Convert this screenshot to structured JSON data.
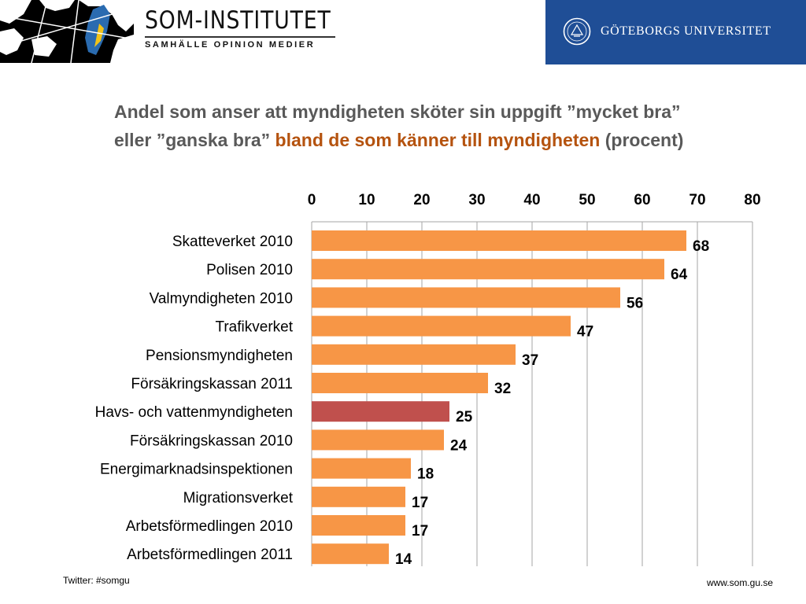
{
  "header": {
    "som_name": "SOM-INSTITUTET",
    "som_tagline": "SAMHÄLLE OPINION MEDIER",
    "university": "GÖTEBORGS UNIVERSITET",
    "brand_color": "#1f4e96"
  },
  "title": {
    "part1": "Andel som anser att myndigheten sköter sin uppgift ”mycket bra” eller ”ganska bra” ",
    "accent": "bland de som känner till myndigheten",
    "part2": " (procent)",
    "text_color": "#595959",
    "accent_color": "#b5530f"
  },
  "chart_data": {
    "type": "bar",
    "orientation": "horizontal",
    "categories": [
      "Skatteverket 2010",
      "Polisen 2010",
      "Valmyndigheten 2010",
      "Trafikverket",
      "Pensionsmyndigheten",
      "Försäkringskassan 2011",
      "Havs- och vattenmyndigheten",
      "Försäkringskassan 2010",
      "Energimarknadsinspektionen",
      "Migrationsverket",
      "Arbetsförmedlingen 2010",
      "Arbetsförmedlingen 2011"
    ],
    "values": [
      68,
      64,
      56,
      47,
      37,
      32,
      25,
      24,
      18,
      17,
      17,
      14
    ],
    "highlight_index": 6,
    "bar_color": "#f79646",
    "highlight_color": "#c0504d",
    "xlim": [
      0,
      80
    ],
    "xticks": [
      0,
      10,
      20,
      30,
      40,
      50,
      60,
      70,
      80
    ],
    "axis_position": "top",
    "grid": true,
    "data_labels": true
  },
  "footer": {
    "twitter": "Twitter: #somgu",
    "website": "www.som.gu.se"
  }
}
